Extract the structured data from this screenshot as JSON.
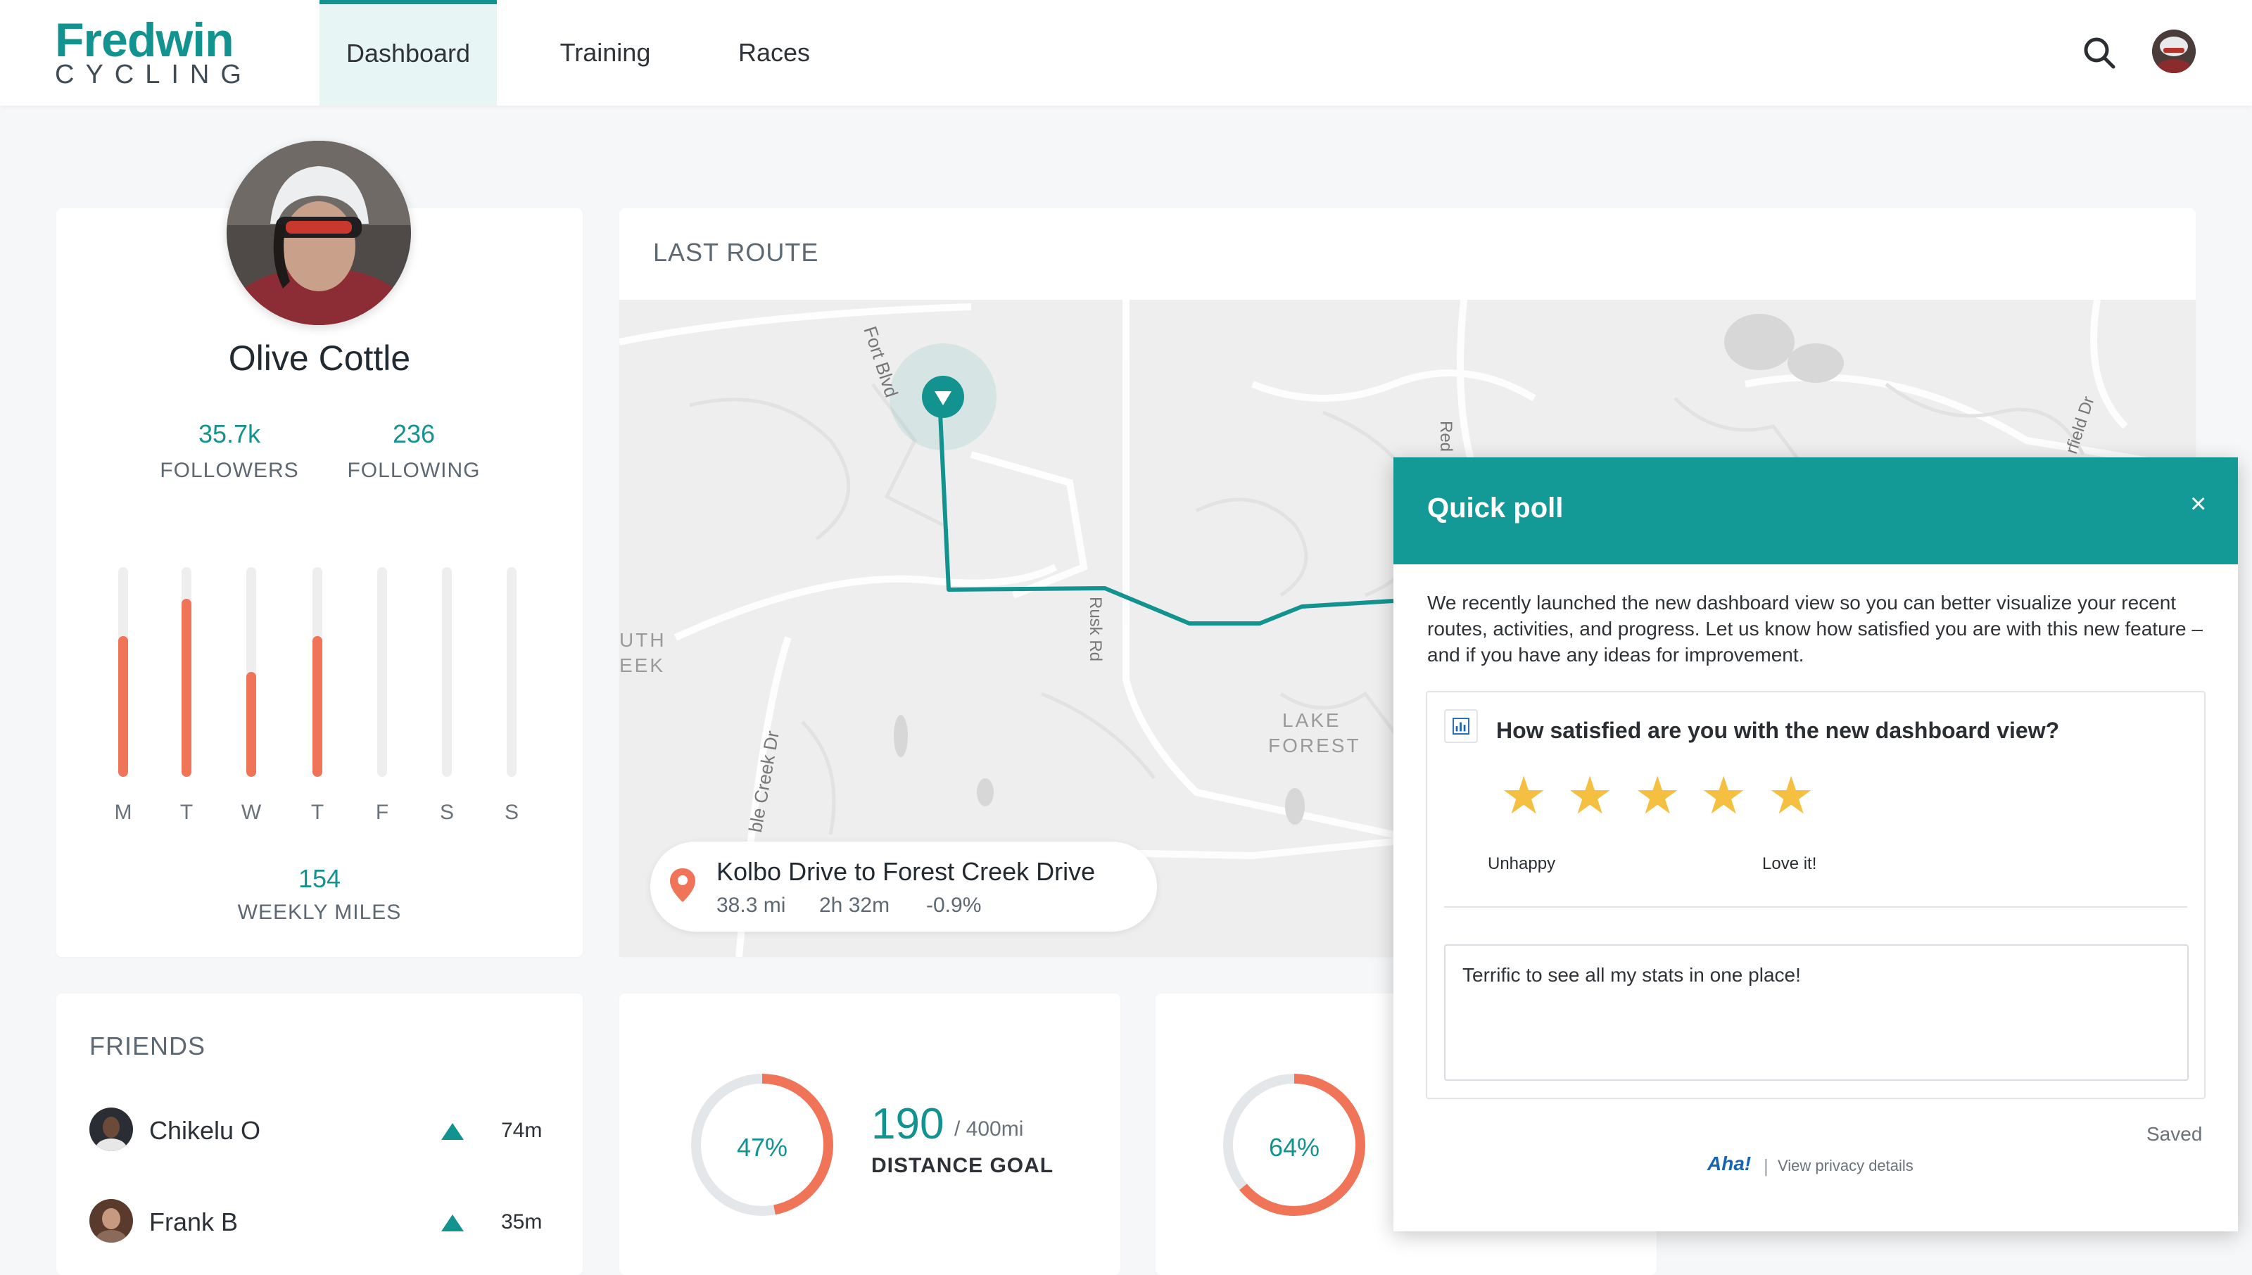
{
  "brand": {
    "name": "Fredwin",
    "sub": "CYCLING",
    "color": "#13938f"
  },
  "nav": {
    "items": [
      {
        "label": "Dashboard",
        "active": true
      },
      {
        "label": "Training",
        "active": false
      },
      {
        "label": "Races",
        "active": false
      }
    ],
    "search_icon": "search-icon",
    "avatar_icon": "user-avatar"
  },
  "profile": {
    "name": "Olive Cottle",
    "followers": "35.7k",
    "followers_label": "FOLLOWERS",
    "following": "236",
    "following_label": "FOLLOWING",
    "weekly_bars": [
      {
        "day": "M",
        "level": 0.67
      },
      {
        "day": "T",
        "level": 0.85
      },
      {
        "day": "W",
        "level": 0.5
      },
      {
        "day": "T",
        "level": 0.67
      },
      {
        "day": "F",
        "level": 0
      },
      {
        "day": "S",
        "level": 0
      },
      {
        "day": "S",
        "level": 0
      }
    ],
    "weekly_miles": "154",
    "weekly_miles_label": "WEEKLY MILES"
  },
  "last_route": {
    "title": "LAST ROUTE",
    "map_labels": {
      "fort": "Fort Blvd",
      "rusk": "Rusk Rd",
      "creek_dr": "ble Creek Dr",
      "lake_forest_1": "LAKE",
      "lake_forest_2": "FOREST",
      "south_creek_1": "UTH",
      "south_creek_2": "EEK",
      "red": "Red",
      "fairfield": "rfield Dr"
    },
    "route_name": "Kolbo Drive to Forest Creek Drive",
    "distance": "38.3 mi",
    "duration": "2h 32m",
    "change": "-0.9%"
  },
  "friends": {
    "title": "FRIENDS",
    "items": [
      {
        "name": "Chikelu O",
        "time": "74m"
      },
      {
        "name": "Frank B",
        "time": "35m"
      }
    ]
  },
  "goals": [
    {
      "percent_label": "47%",
      "level": 0.47,
      "value": "190",
      "target": "/ 400mi",
      "label": "DISTANCE GOAL"
    },
    {
      "percent_label": "64%",
      "level": 0.64
    }
  ],
  "poll": {
    "title": "Quick poll",
    "close": "×",
    "description": "We recently launched the new dashboard view so you can better visualize your recent routes, activities, and progress. Let us know how satisfied you are with this new feature – and if you have any ideas for improvement.",
    "question": "How satisfied are you with the new dashboard view?",
    "stars": [
      "★",
      "★",
      "★",
      "★",
      "★"
    ],
    "rating": 5,
    "low_label": "Unhappy",
    "high_label": "Love it!",
    "comment": "Terrific to see all my stats in one place!",
    "status": "Saved",
    "brand": "Aha!",
    "separator": "|",
    "privacy": "View privacy details",
    "header_color": "#139a97",
    "star_color": "#f5c042"
  }
}
